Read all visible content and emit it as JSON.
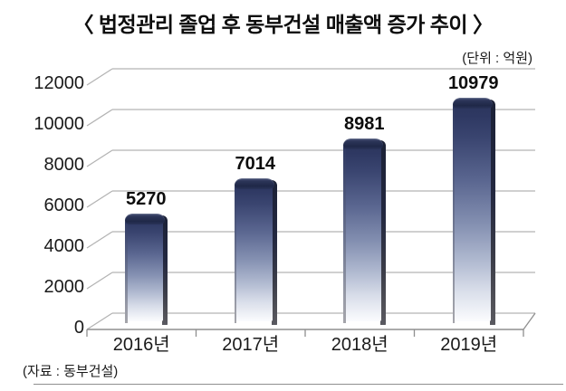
{
  "page": {
    "title": "〈 법정관리 졸업 후 동부건설 매출액 증가 추이 〉",
    "unit_label": "(단위 : 억원)",
    "source_label": "(자료 : 동부건설)"
  },
  "chart_data": {
    "type": "bar",
    "style": "3d-perspective-column",
    "title": "법정관리 졸업 후 동부건설 매출액 증가 추이",
    "unit": "억원",
    "categories": [
      "2016년",
      "2017년",
      "2018년",
      "2019년"
    ],
    "values": [
      5270,
      7014,
      8981,
      10979
    ],
    "value_labels": [
      "5270",
      "7014",
      "8981",
      "10979"
    ],
    "yticks": [
      0,
      2000,
      4000,
      6000,
      8000,
      10000,
      12000
    ],
    "ylim": [
      0,
      12000
    ],
    "grid": true,
    "legend": false,
    "colors": {
      "bar_cap": "#232c50",
      "bar_gradient_top": "#2a3459",
      "bar_gradient_bottom": "#fbfcfe",
      "bar_side_shadow": "#2c3040",
      "gridline": "#b3b3b3",
      "axis": "#8f8f8f",
      "text": "#111111"
    }
  }
}
